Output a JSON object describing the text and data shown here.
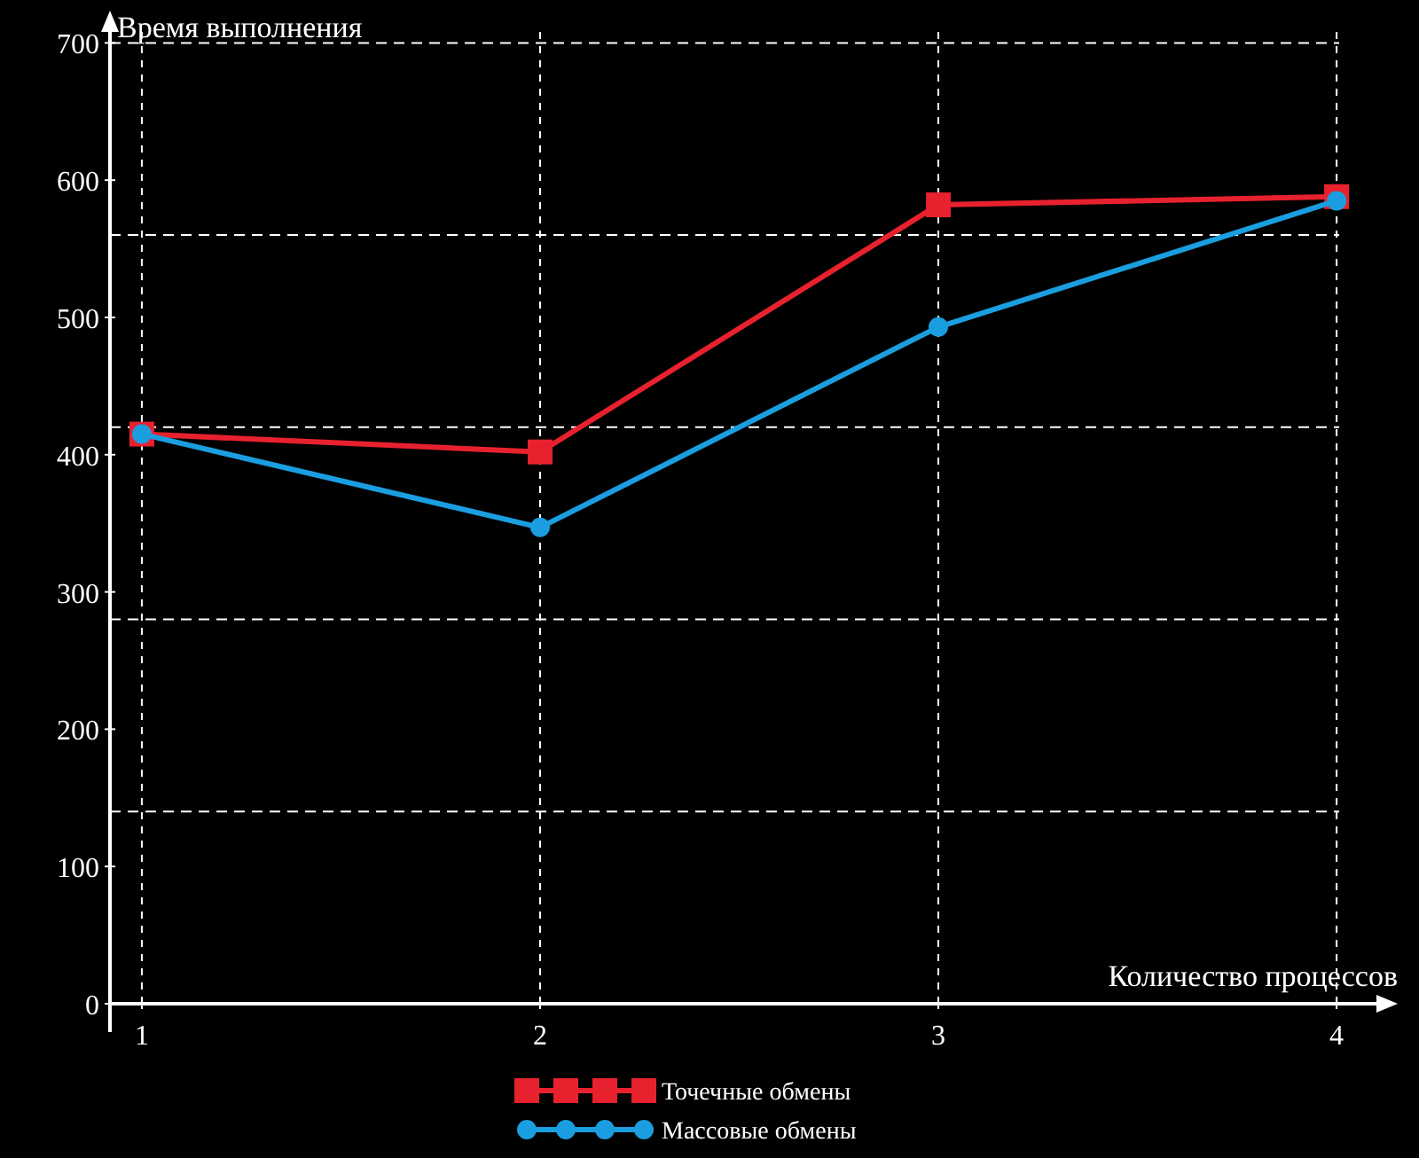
{
  "chart_data": {
    "type": "line",
    "xlabel": "Количество процессов",
    "ylabel": "Время выполнения",
    "x": [
      1,
      2,
      3,
      4
    ],
    "xlim": [
      0.92,
      4.1
    ],
    "xticks": [
      1,
      2,
      3,
      4
    ],
    "ylim": [
      0,
      708
    ],
    "yticks": [
      0,
      100,
      200,
      300,
      400,
      500,
      600,
      700
    ],
    "series": [
      {
        "name": "Точечные обмены",
        "color": "#e8212e",
        "marker": "square",
        "values": [
          415,
          402,
          582,
          588
        ]
      },
      {
        "name": "Массовые обмены",
        "color": "#1a9ee0",
        "marker": "circle",
        "values": [
          415,
          347,
          493,
          585
        ]
      }
    ],
    "grid": "x",
    "legend": "bottom",
    "line_style": "solid",
    "ref_lines": [
      {
        "axis": "y",
        "value": 140,
        "color": "#ffffff",
        "line_style": "dashed"
      },
      {
        "axis": "y",
        "value": 280,
        "color": "#ffffff",
        "line_style": "dashed"
      },
      {
        "axis": "y",
        "value": 420,
        "color": "#ffffff",
        "line_style": "dashed"
      },
      {
        "axis": "y",
        "value": 560,
        "color": "#ffffff",
        "line_style": "dashed"
      },
      {
        "axis": "y",
        "value": 700,
        "color": "#ffffff",
        "line_style": "dashed"
      }
    ]
  }
}
